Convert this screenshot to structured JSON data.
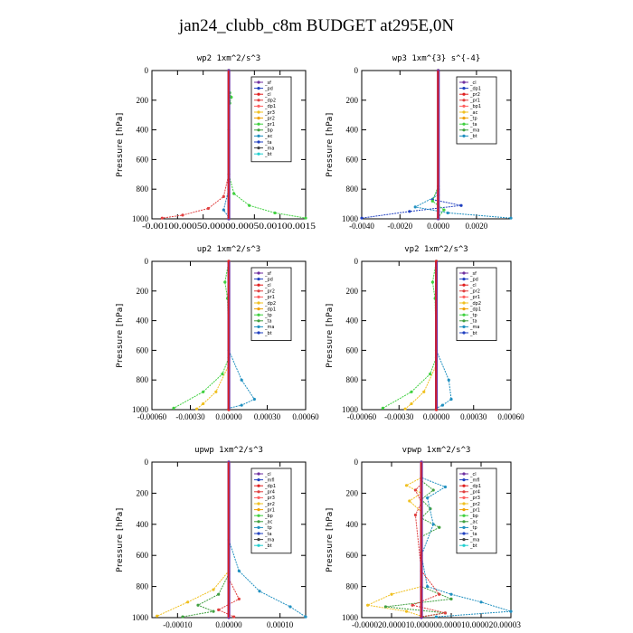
{
  "figure_title": "jan24_clubb_c8m  BUDGET at295E,0N",
  "chart_data": [
    {
      "type": "line",
      "title": "wp2  1xm^2/s^3",
      "ylabel": "Pressure [hPa]",
      "ylim": [
        1000,
        0
      ],
      "yticks": [
        "0",
        "200",
        "400",
        "600",
        "800",
        "1000"
      ],
      "xlim": [
        -0.0015,
        0.0015
      ],
      "xtick_values": [
        -0.001,
        -0.0005,
        0.0,
        0.0005,
        0.001,
        0.0015
      ],
      "xtick_label": "-0.00100.00050.00000.00050.00100.0015",
      "legend_position": "top-right",
      "legend": [
        "_sf",
        "_pd",
        "_cl",
        "_dp2",
        "_dp1",
        "_pr3",
        "_pr2",
        "_pr1",
        "_bp",
        "_ac",
        "_ta",
        "_ma",
        "_bt"
      ],
      "series": [
        {
          "name": "_pr1",
          "color": "#40d040",
          "values": [
            [
              0,
              0
            ],
            [
              2e-05,
              150
            ],
            [
              5e-05,
              180
            ],
            [
              2e-05,
              220
            ],
            [
              0,
              400
            ],
            [
              0,
              700
            ],
            [
              0.0001,
              830
            ],
            [
              0.0004,
              910
            ],
            [
              0.0009,
              960
            ],
            [
              0.0015,
              995
            ]
          ]
        },
        {
          "name": "_dp1",
          "color": "#e04040",
          "values": [
            [
              0,
              0
            ],
            [
              0,
              700
            ],
            [
              -0.0001,
              850
            ],
            [
              -0.0004,
              930
            ],
            [
              -0.0009,
              975
            ],
            [
              -0.0013,
              995
            ]
          ]
        },
        {
          "name": "_bp",
          "color": "#2080c0",
          "values": [
            [
              0,
              0
            ],
            [
              0,
              800
            ],
            [
              -0.0001,
              940
            ],
            [
              0,
              990
            ]
          ]
        },
        {
          "name": "_ac",
          "color": "#404040",
          "values": [
            [
              0,
              0
            ],
            [
              0,
              1000
            ]
          ]
        },
        {
          "name": "_bt",
          "color": "#7030a0",
          "values": [
            [
              0,
              0
            ],
            [
              0,
              1000
            ]
          ]
        }
      ]
    },
    {
      "type": "line",
      "title": "wp3  1xm^{3} s^{-4}",
      "ylabel": "Pressure [hPa]",
      "ylim": [
        1000,
        0
      ],
      "yticks": [
        "0",
        "200",
        "400",
        "600",
        "800",
        "1000"
      ],
      "xlim": [
        -0.004,
        0.0038
      ],
      "xtick_values": [
        -0.004,
        -0.002,
        0.0,
        0.002
      ],
      "xtick_labels": [
        "-0.0040",
        "-0.0020",
        "0.0000",
        "0.0020"
      ],
      "legend_position": "top-right",
      "legend": [
        "_cl",
        "_dp1",
        "_pr2",
        "_pr1",
        "_bp1",
        "_ac",
        "_tp",
        "_ta",
        "_ma",
        "_bt"
      ],
      "series": [
        {
          "name": "_ta",
          "color": "#2040c0",
          "values": [
            [
              0,
              0
            ],
            [
              0,
              800
            ],
            [
              -0.0003,
              870
            ],
            [
              0.0012,
              910
            ],
            [
              -0.0015,
              950
            ],
            [
              -0.004,
              995
            ]
          ]
        },
        {
          "name": "_tp",
          "color": "#2090c0",
          "values": [
            [
              0,
              0
            ],
            [
              0,
              840
            ],
            [
              -0.0012,
              920
            ],
            [
              0.0005,
              960
            ],
            [
              0.0038,
              995
            ]
          ]
        },
        {
          "name": "_pr1",
          "color": "#40d040",
          "values": [
            [
              0,
              0
            ],
            [
              0,
              780
            ],
            [
              -0.0003,
              880
            ],
            [
              0.0003,
              940
            ],
            [
              0,
              990
            ]
          ]
        },
        {
          "name": "_dp1",
          "color": "#e04040",
          "values": [
            [
              0,
              0
            ],
            [
              0,
              1000
            ]
          ]
        },
        {
          "name": "_bt",
          "color": "#7030a0",
          "values": [
            [
              0,
              0
            ],
            [
              0,
              1000
            ]
          ]
        }
      ]
    },
    {
      "type": "line",
      "title": "up2  1xm^2/s^3",
      "ylabel": "Pressure [hPa]",
      "ylim": [
        1000,
        0
      ],
      "yticks": [
        "0",
        "200",
        "400",
        "600",
        "800",
        "1000"
      ],
      "xlim": [
        -0.0006,
        0.0006
      ],
      "xtick_values": [
        -0.0006,
        -0.0003,
        0.0,
        0.0003,
        0.0006
      ],
      "xtick_labels": [
        "-0.00060",
        "-0.00030",
        "0.00000",
        "0.00030",
        "0.00060"
      ],
      "legend_position": "top-right",
      "legend": [
        "_sf",
        "_pd",
        "_cl",
        "_pr2",
        "_pr1",
        "_dp2",
        "_dp1",
        "_tp",
        "_ta",
        "_ma",
        "_bt"
      ],
      "series": [
        {
          "name": "_dp2",
          "color": "#40d040",
          "values": [
            [
              0,
              0
            ],
            [
              -3e-05,
              140
            ],
            [
              -1e-05,
              250
            ],
            [
              0,
              650
            ],
            [
              -5e-05,
              760
            ],
            [
              -0.0002,
              880
            ],
            [
              -0.00043,
              990
            ]
          ]
        },
        {
          "name": "_pr2",
          "color": "#f0c020",
          "values": [
            [
              0,
              0
            ],
            [
              0,
              700
            ],
            [
              -0.0001,
              880
            ],
            [
              -0.0002,
              960
            ],
            [
              -0.00025,
              995
            ]
          ]
        },
        {
          "name": "_tp",
          "color": "#2090c0",
          "values": [
            [
              0,
              0
            ],
            [
              0,
              600
            ],
            [
              0.0001,
              800
            ],
            [
              0.0002,
              930
            ],
            [
              0.0001,
              970
            ],
            [
              0,
              990
            ]
          ]
        },
        {
          "name": "_bt",
          "color": "#7030a0",
          "values": [
            [
              0,
              0
            ],
            [
              0,
              1000
            ]
          ]
        },
        {
          "name": "_cl",
          "color": "#e02020",
          "values": [
            [
              0,
              0
            ],
            [
              0,
              1000
            ]
          ]
        }
      ]
    },
    {
      "type": "line",
      "title": "vp2  1xm^2/s^3",
      "ylabel": "Pressure [hPa]",
      "ylim": [
        1000,
        0
      ],
      "yticks": [
        "0",
        "200",
        "400",
        "600",
        "800",
        "1000"
      ],
      "xlim": [
        -0.0006,
        0.0006
      ],
      "xtick_values": [
        -0.0006,
        -0.0003,
        0.0,
        0.0003,
        0.0006
      ],
      "xtick_labels": [
        "-0.00060",
        "-0.00030",
        "0.00000",
        "0.00030",
        "0.00060"
      ],
      "legend_position": "top-right",
      "legend": [
        "_sf",
        "_pd",
        "_cl",
        "_pr2",
        "_pr1",
        "_dp2",
        "_dp1",
        "_tp",
        "_ta",
        "_ma",
        "_bt"
      ],
      "series": [
        {
          "name": "_dp2",
          "color": "#40d040",
          "values": [
            [
              0,
              0
            ],
            [
              -3e-05,
              140
            ],
            [
              -1e-05,
              250
            ],
            [
              0,
              650
            ],
            [
              -5e-05,
              760
            ],
            [
              -0.0002,
              880
            ],
            [
              -0.00043,
              990
            ]
          ]
        },
        {
          "name": "_pr2",
          "color": "#f0c020",
          "values": [
            [
              0,
              0
            ],
            [
              0,
              700
            ],
            [
              -0.0001,
              880
            ],
            [
              -0.0002,
              960
            ],
            [
              -0.00025,
              995
            ]
          ]
        },
        {
          "name": "_tp",
          "color": "#2090c0",
          "values": [
            [
              0,
              0
            ],
            [
              0,
              600
            ],
            [
              0.0001,
              800
            ],
            [
              0.00012,
              930
            ],
            [
              5e-05,
              970
            ],
            [
              0,
              990
            ]
          ]
        },
        {
          "name": "_bt",
          "color": "#7030a0",
          "values": [
            [
              0,
              0
            ],
            [
              0,
              1000
            ]
          ]
        },
        {
          "name": "_cl",
          "color": "#e02020",
          "values": [
            [
              0,
              0
            ],
            [
              0,
              1000
            ]
          ]
        }
      ]
    },
    {
      "type": "line",
      "title": "upwp  1xm^2/s^3",
      "ylabel": "Pressure [hPa]",
      "ylim": [
        1000,
        0
      ],
      "yticks": [
        "0",
        "200",
        "400",
        "600",
        "800",
        "1000"
      ],
      "xlim": [
        -0.00015,
        0.00015
      ],
      "xtick_values": [
        -0.0001,
        0.0,
        0.0001
      ],
      "xtick_labels": [
        "-0.00010",
        "0.00000",
        "0.00010"
      ],
      "legend_position": "top-right",
      "legend": [
        "_cl",
        "_mfl",
        "_dp1",
        "_pr4",
        "_pr3",
        "_pr2",
        "_pr1",
        "_bp",
        "_ac",
        "_tp",
        "_ta",
        "_ma",
        "_bt"
      ],
      "series": [
        {
          "name": "_pr1",
          "color": "#f0c020",
          "values": [
            [
              0,
              0
            ],
            [
              0,
              700
            ],
            [
              -3e-05,
              820
            ],
            [
              -8e-05,
              900
            ],
            [
              -0.00014,
              990
            ]
          ]
        },
        {
          "name": "_bp",
          "color": "#40a040",
          "values": [
            [
              0,
              0
            ],
            [
              0,
              720
            ],
            [
              -2e-05,
              850
            ],
            [
              -6e-05,
              920
            ],
            [
              -3e-05,
              960
            ],
            [
              -9e-05,
              995
            ]
          ]
        },
        {
          "name": "_tp",
          "color": "#2090c0",
          "values": [
            [
              0,
              0
            ],
            [
              0,
              500
            ],
            [
              2e-05,
              700
            ],
            [
              6e-05,
              830
            ],
            [
              0.00012,
              930
            ],
            [
              0.00015,
              995
            ]
          ]
        },
        {
          "name": "_dp1",
          "color": "#e04040",
          "values": [
            [
              0,
              0
            ],
            [
              0,
              750
            ],
            [
              2e-05,
              880
            ],
            [
              -2e-05,
              950
            ],
            [
              1e-05,
              995
            ]
          ]
        },
        {
          "name": "_bt",
          "color": "#7030a0",
          "values": [
            [
              0,
              0
            ],
            [
              0,
              1000
            ]
          ]
        }
      ]
    },
    {
      "type": "line",
      "title": "vpwp  1xm^2/s^3",
      "ylabel": "Pressure [hPa]",
      "ylim": [
        1000,
        0
      ],
      "yticks": [
        "0",
        "200",
        "400",
        "600",
        "800",
        "1000"
      ],
      "xlim": [
        -2e-05,
        3e-05
      ],
      "xtick_values": [
        -2e-05,
        -1e-05,
        0.0,
        1e-05,
        2e-05,
        3e-05
      ],
      "xtick_label": "-0.000020.000010.000000.000010.000020.00003",
      "legend_position": "top-right",
      "legend": [
        "_cl",
        "_mfl",
        "_dp1",
        "_pr4",
        "_pr3",
        "_pr2",
        "_pr1",
        "_bp",
        "_ac",
        "_tp",
        "_ta",
        "_ma",
        "_bt"
      ],
      "series": [
        {
          "name": "_pr2",
          "color": "#f0c020",
          "values": [
            [
              0,
              0
            ],
            [
              0,
              100
            ],
            [
              -5e-06,
              150
            ],
            [
              0,
              200
            ],
            [
              -4e-06,
              250
            ],
            [
              0,
              320
            ],
            [
              0,
              800
            ],
            [
              -1e-05,
              850
            ],
            [
              -1.8e-05,
              920
            ],
            [
              -5e-06,
              960
            ],
            [
              0,
              990
            ]
          ]
        },
        {
          "name": "_bp",
          "color": "#40a040",
          "values": [
            [
              0,
              0
            ],
            [
              0,
              120
            ],
            [
              4e-06,
              180
            ],
            [
              0,
              240
            ],
            [
              3e-06,
              300
            ],
            [
              0,
              360
            ],
            [
              6e-06,
              420
            ],
            [
              0,
              480
            ],
            [
              0,
              800
            ],
            [
              1e-05,
              880
            ],
            [
              -1.2e-05,
              930
            ],
            [
              8e-06,
              970
            ],
            [
              0,
              995
            ]
          ]
        },
        {
          "name": "_tp",
          "color": "#2090c0",
          "values": [
            [
              0,
              0
            ],
            [
              0,
              100
            ],
            [
              8e-06,
              160
            ],
            [
              2e-06,
              230
            ],
            [
              4e-06,
              400
            ],
            [
              0,
              600
            ],
            [
              2e-06,
              800
            ],
            [
              1e-05,
              850
            ],
            [
              2e-05,
              900
            ],
            [
              3e-05,
              960
            ],
            [
              5e-06,
              995
            ]
          ]
        },
        {
          "name": "_dp1",
          "color": "#e04040",
          "values": [
            [
              0,
              0
            ],
            [
              0,
              140
            ],
            [
              -2e-06,
              180
            ],
            [
              0,
              260
            ],
            [
              -2e-06,
              340
            ],
            [
              0,
              700
            ],
            [
              6e-06,
              850
            ],
            [
              -3e-06,
              920
            ],
            [
              8e-06,
              970
            ],
            [
              0,
              995
            ]
          ]
        },
        {
          "name": "_bt",
          "color": "#7030a0",
          "values": [
            [
              0,
              0
            ],
            [
              0,
              1000
            ]
          ]
        }
      ]
    }
  ]
}
